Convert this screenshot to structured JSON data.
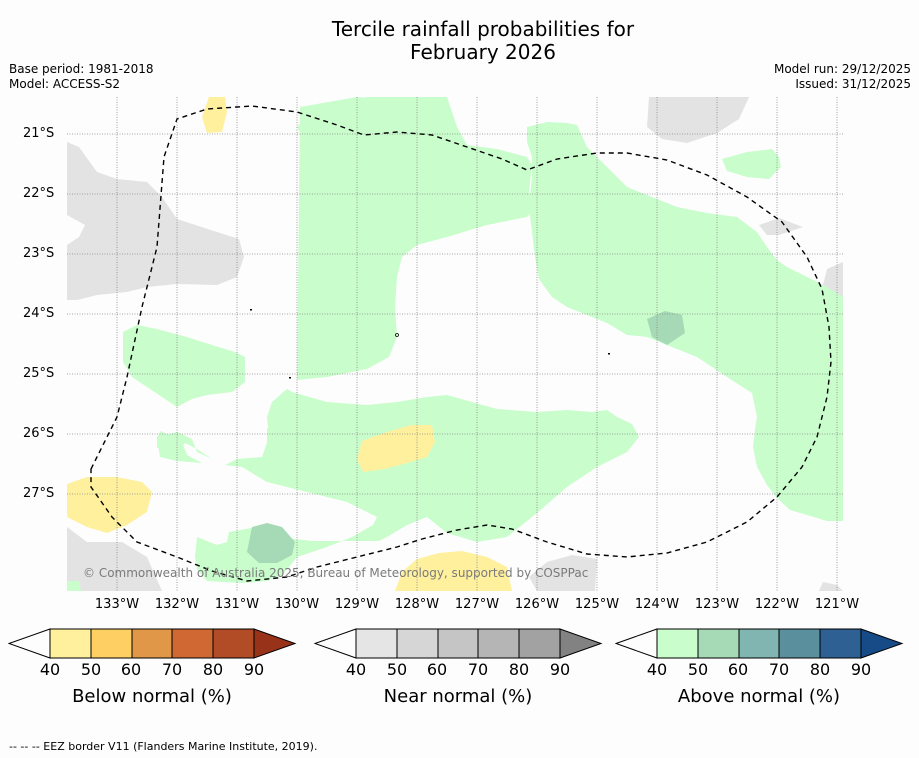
{
  "title_line1": "Tercile rainfall probabilities for",
  "title_line2": "February 2026",
  "base_period": "Base period: 1981-2018",
  "model": "Model: ACCESS-S2",
  "model_run": "Model run: 29/12/2025",
  "issued": "Issued: 31/12/2025",
  "copyright": "© Commonwealth of Australia 2025, Bureau of Meteorology, supported by COSPPac",
  "lon_labels": [
    "133°W",
    "132°W",
    "131°W",
    "130°W",
    "129°W",
    "128°W",
    "127°W",
    "126°W",
    "125°W",
    "124°W",
    "123°W",
    "122°W",
    "121°W"
  ],
  "lat_labels": [
    "21°S",
    "22°S",
    "23°S",
    "24°S",
    "25°S",
    "26°S",
    "27°S"
  ],
  "colorbars": [
    {
      "label": "Below normal (%)",
      "ticks": [
        "40",
        "50",
        "60",
        "70",
        "80",
        "90"
      ],
      "colors": [
        "#fff09e",
        "#fecf62",
        "#e19748",
        "#cf6833",
        "#b24c27",
        "#98331a"
      ]
    },
    {
      "label": "Near normal (%)",
      "ticks": [
        "40",
        "50",
        "60",
        "70",
        "80",
        "90"
      ],
      "colors": [
        "#e5e5e5",
        "#d6d6d6",
        "#c5c5c5",
        "#b5b5b5",
        "#a2a2a2",
        "#828282"
      ]
    },
    {
      "label": "Above normal (%)",
      "ticks": [
        "40",
        "50",
        "60",
        "70",
        "80",
        "90"
      ],
      "colors": [
        "#c9fdcc",
        "#a6d9b6",
        "#80b5b1",
        "#5a8f9d",
        "#2e6093",
        "#174b87"
      ]
    }
  ],
  "footer": "--  --  -- EEZ border V11 (Flanders Marine Institute, 2019)."
}
